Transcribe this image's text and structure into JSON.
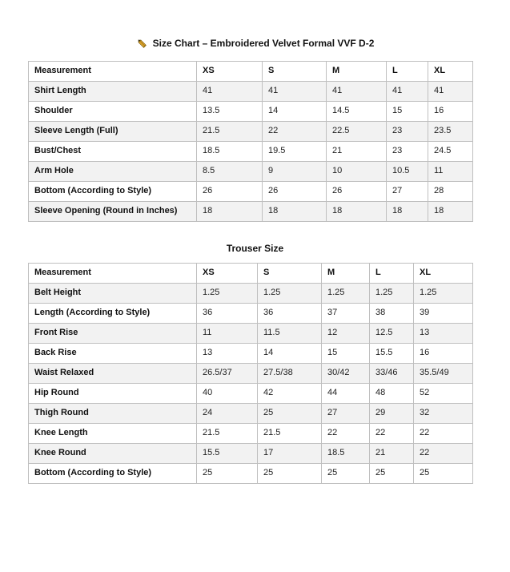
{
  "page": {
    "title": "Size Chart – Embroidered Velvet Formal VVF D-2"
  },
  "icons": {
    "pencil": "pencil-icon"
  },
  "colors": {
    "row_stripe": "#f2f2f2",
    "border": "#bfbfbf",
    "text": "#1f1f1f",
    "pencil_gold": "#d9a02a",
    "pencil_dark": "#3f3310"
  },
  "size_chart": {
    "columns": [
      "Measurement",
      "XS",
      "S",
      "M",
      "L",
      "XL"
    ],
    "rows": [
      {
        "label": "Shirt Length",
        "values": [
          "41",
          "41",
          "41",
          "41",
          "41"
        ]
      },
      {
        "label": "Shoulder",
        "values": [
          "13.5",
          "14",
          "14.5",
          "15",
          "16"
        ]
      },
      {
        "label": "Sleeve Length (Full)",
        "values": [
          "21.5",
          "22",
          "22.5",
          "23",
          "23.5"
        ]
      },
      {
        "label": "Bust/Chest",
        "values": [
          "18.5",
          "19.5",
          "21",
          "23",
          "24.5"
        ]
      },
      {
        "label": "Arm Hole",
        "values": [
          "8.5",
          "9",
          "10",
          "10.5",
          "11"
        ]
      },
      {
        "label": "Bottom (According to Style)",
        "values": [
          "26",
          "26",
          "26",
          "27",
          "28"
        ]
      },
      {
        "label": "Sleeve Opening (Round in Inches)",
        "values": [
          "18",
          "18",
          "18",
          "18",
          "18"
        ]
      }
    ]
  },
  "trouser_chart": {
    "title": "Trouser Size",
    "columns": [
      "Measurement",
      "XS",
      "S",
      "M",
      "L",
      "XL"
    ],
    "rows": [
      {
        "label": "Belt Height",
        "values": [
          "1.25",
          "1.25",
          "1.25",
          "1.25",
          "1.25"
        ]
      },
      {
        "label": "Length (According to Style)",
        "values": [
          "36",
          "36",
          "37",
          "38",
          "39"
        ]
      },
      {
        "label": "Front Rise",
        "values": [
          "11",
          "11.5",
          "12",
          "12.5",
          "13"
        ]
      },
      {
        "label": "Back Rise",
        "values": [
          "13",
          "14",
          "15",
          "15.5",
          "16"
        ]
      },
      {
        "label": "Waist Relaxed",
        "values": [
          "26.5/37",
          "27.5/38",
          "30/42",
          "33/46",
          "35.5/49"
        ]
      },
      {
        "label": "Hip Round",
        "values": [
          "40",
          "42",
          "44",
          "48",
          "52"
        ]
      },
      {
        "label": "Thigh Round",
        "values": [
          "24",
          "25",
          "27",
          "29",
          "32"
        ]
      },
      {
        "label": "Knee Length",
        "values": [
          "21.5",
          "21.5",
          "22",
          "22",
          "22"
        ]
      },
      {
        "label": "Knee Round",
        "values": [
          "15.5",
          "17",
          "18.5",
          "21",
          "22"
        ]
      },
      {
        "label": "Bottom (According to Style)",
        "values": [
          "25",
          "25",
          "25",
          "25",
          "25"
        ]
      }
    ]
  }
}
